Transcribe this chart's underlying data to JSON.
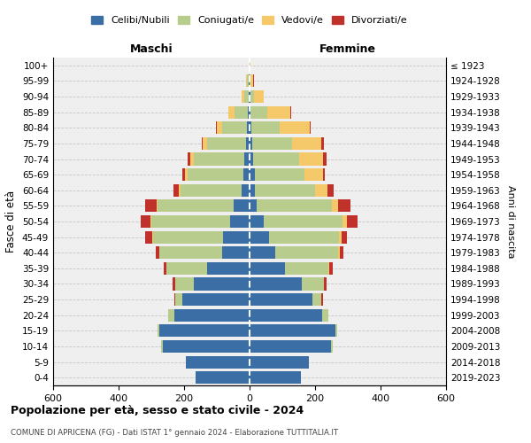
{
  "age_groups": [
    "100+",
    "95-99",
    "90-94",
    "85-89",
    "80-84",
    "75-79",
    "70-74",
    "65-69",
    "60-64",
    "55-59",
    "50-54",
    "45-49",
    "40-44",
    "35-39",
    "30-34",
    "25-29",
    "20-24",
    "15-19",
    "10-14",
    "5-9",
    "0-4"
  ],
  "birth_years": [
    "≤ 1923",
    "1924-1928",
    "1929-1933",
    "1934-1938",
    "1939-1943",
    "1944-1948",
    "1949-1953",
    "1954-1958",
    "1959-1963",
    "1964-1968",
    "1969-1973",
    "1974-1978",
    "1979-1983",
    "1984-1988",
    "1989-1993",
    "1994-1998",
    "1999-2003",
    "2004-2008",
    "2009-2013",
    "2014-2018",
    "2019-2023"
  ],
  "male": {
    "celibi": [
      1,
      3,
      3,
      5,
      8,
      10,
      15,
      20,
      25,
      50,
      60,
      80,
      85,
      130,
      170,
      205,
      230,
      275,
      265,
      195,
      165
    ],
    "coniugati": [
      0,
      5,
      12,
      40,
      75,
      120,
      155,
      170,
      185,
      230,
      240,
      215,
      190,
      125,
      58,
      22,
      18,
      5,
      5,
      0,
      0
    ],
    "vedovi": [
      0,
      2,
      10,
      20,
      18,
      12,
      12,
      8,
      5,
      3,
      3,
      3,
      0,
      0,
      0,
      0,
      0,
      0,
      0,
      0,
      0
    ],
    "divorziati": [
      0,
      0,
      0,
      0,
      2,
      5,
      8,
      8,
      18,
      35,
      30,
      20,
      12,
      8,
      8,
      3,
      0,
      0,
      0,
      0,
      0
    ]
  },
  "female": {
    "nubili": [
      0,
      0,
      2,
      4,
      5,
      8,
      12,
      15,
      15,
      22,
      42,
      60,
      78,
      108,
      160,
      192,
      222,
      262,
      248,
      182,
      158
    ],
    "coniugate": [
      0,
      4,
      12,
      50,
      88,
      122,
      140,
      152,
      185,
      230,
      242,
      212,
      192,
      132,
      68,
      28,
      18,
      5,
      5,
      0,
      0
    ],
    "vedove": [
      2,
      8,
      28,
      70,
      90,
      88,
      72,
      58,
      38,
      18,
      14,
      8,
      5,
      4,
      0,
      0,
      0,
      0,
      0,
      0,
      0
    ],
    "divorziate": [
      0,
      2,
      2,
      2,
      4,
      8,
      10,
      5,
      18,
      38,
      32,
      18,
      12,
      10,
      8,
      4,
      0,
      0,
      0,
      0,
      0
    ]
  },
  "colors": {
    "celibi": "#3b6ea5",
    "coniugati": "#b8cc8e",
    "vedovi": "#f5c96a",
    "divorziati": "#c0312b"
  },
  "xlim": 600,
  "title": "Popolazione per età, sesso e stato civile - 2024",
  "subtitle": "COMUNE DI APRICENA (FG) - Dati ISTAT 1° gennaio 2024 - Elaborazione TUTTITALIA.IT",
  "xlabel_left": "Maschi",
  "xlabel_right": "Femmine",
  "ylabel": "Fasce di età",
  "ylabel_right": "Anni di nascita",
  "legend_labels": [
    "Celibi/Nubili",
    "Coniugati/e",
    "Vedovi/e",
    "Divorziati/e"
  ],
  "background_color": "#ffffff",
  "plot_bg_color": "#efefef"
}
